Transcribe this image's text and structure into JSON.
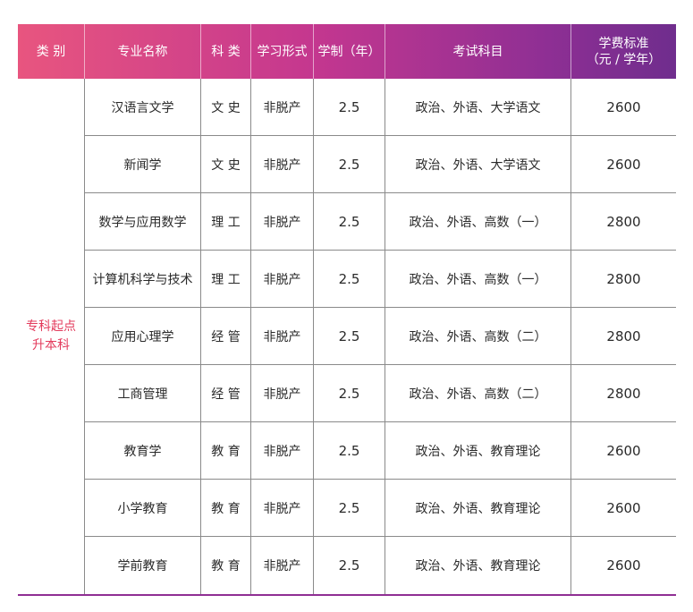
{
  "header": [
    "类 别",
    "专业名称",
    "科 类",
    "学习形式",
    "学制（年）",
    "考试科目",
    "学费标准\n（元 / 学年）"
  ],
  "category": [
    "专科起点",
    "升本科"
  ],
  "rows": [
    {
      "major": "汉语言文学",
      "subject": "文 史",
      "mode": "非脱产",
      "years": "2.5",
      "exam": "政治、外语、大学语文",
      "fee": "2600"
    },
    {
      "major": "新闻学",
      "subject": "文 史",
      "mode": "非脱产",
      "years": "2.5",
      "exam": "政治、外语、大学语文",
      "fee": "2600"
    },
    {
      "major": "数学与应用数学",
      "subject": "理 工",
      "mode": "非脱产",
      "years": "2.5",
      "exam": "政治、外语、高数（一）",
      "fee": "2800"
    },
    {
      "major": "计算机科学与技术",
      "subject": "理 工",
      "mode": "非脱产",
      "years": "2.5",
      "exam": "政治、外语、高数（一）",
      "fee": "2800"
    },
    {
      "major": "应用心理学",
      "subject": "经 管",
      "mode": "非脱产",
      "years": "2.5",
      "exam": "政治、外语、高数（二）",
      "fee": "2800"
    },
    {
      "major": "工商管理",
      "subject": "经 管",
      "mode": "非脱产",
      "years": "2.5",
      "exam": "政治、外语、高数（二）",
      "fee": "2800"
    },
    {
      "major": "教育学",
      "subject": "教 育",
      "mode": "非脱产",
      "years": "2.5",
      "exam": "政治、外语、教育理论",
      "fee": "2600"
    },
    {
      "major": "小学教育",
      "subject": "教 育",
      "mode": "非脱产",
      "years": "2.5",
      "exam": "政治、外语、教育理论",
      "fee": "2600"
    },
    {
      "major": "学前教育",
      "subject": "教 育",
      "mode": "非脱产",
      "years": "2.5",
      "exam": "政治、外语、教育理论",
      "fee": "2600"
    }
  ]
}
